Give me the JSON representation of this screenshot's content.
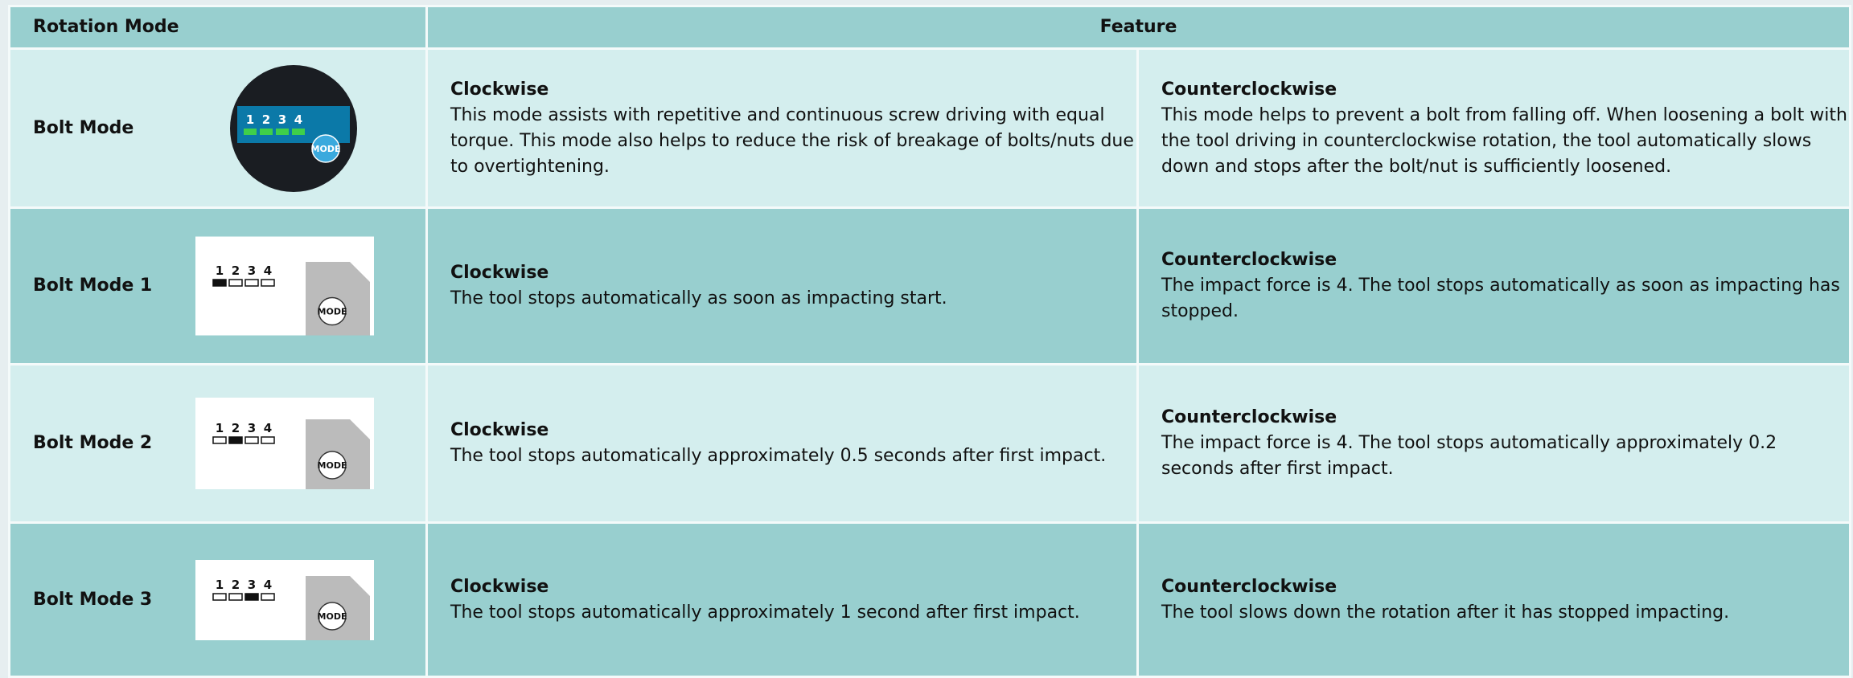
{
  "header": {
    "col1": "Rotation Mode",
    "col2": "Feature"
  },
  "icon_labels": [
    "1",
    "2",
    "3",
    "4"
  ],
  "mode_button": "MODE",
  "rows": [
    {
      "mode": "Bolt Mode",
      "cw_title": "Clockwise",
      "cw_text": "This mode assists with repetitive and continuous screw driving with equal torque. This mode also helps to reduce the risk of breakage of bolts/nuts due to overtightening.",
      "ccw_title": "Counterclockwise",
      "ccw_text": "This mode helps to prevent a bolt from falling off. When loosening a bolt with the tool driving in counterclockwise rotation, the tool automatically slows down and stops after the bolt/nut is sufficiently loosened."
    },
    {
      "mode": "Bolt Mode 1",
      "cw_title": "Clockwise",
      "cw_text": "The tool stops automatically as soon as impacting start.",
      "ccw_title": "Counterclockwise",
      "ccw_text": "The impact force is 4. The tool stops automatically as soon as impacting has stopped."
    },
    {
      "mode": "Bolt Mode 2",
      "cw_title": "Clockwise",
      "cw_text": "The tool stops automatically approximately 0.5 seconds after first impact.",
      "ccw_title": "Counterclockwise",
      "ccw_text": "The impact force is 4. The tool stops automatically approximately 0.2 seconds after first impact."
    },
    {
      "mode": "Bolt Mode 3",
      "cw_title": "Clockwise",
      "cw_text": "The tool stops automatically approximately 1 second after first impact.",
      "ccw_title": "Counterclockwise",
      "ccw_text": "The tool slows down the rotation after it has stopped impacting."
    }
  ]
}
